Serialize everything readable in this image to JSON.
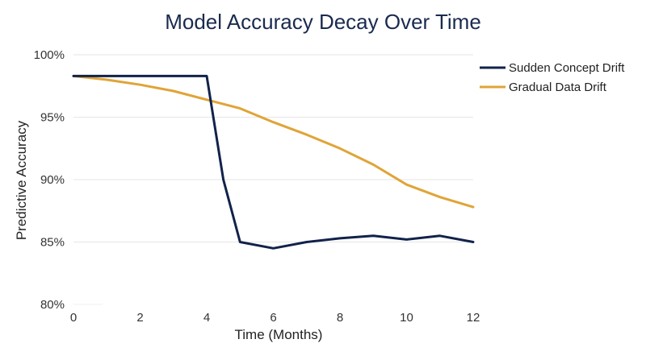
{
  "chart_data": {
    "type": "line",
    "title": "Model Accuracy Decay Over Time",
    "xlabel": "Time (Months)",
    "ylabel": "Predictive Accuracy",
    "xlim": [
      0,
      12
    ],
    "ylim": [
      80,
      100
    ],
    "x_ticks": [
      "0",
      "2",
      "4",
      "6",
      "8",
      "10",
      "12"
    ],
    "y_ticks": [
      "80%",
      "85%",
      "90%",
      "95%",
      "100%"
    ],
    "x_tick_values": [
      0,
      2,
      4,
      6,
      8,
      10,
      12
    ],
    "y_tick_values": [
      80,
      85,
      90,
      95,
      100
    ],
    "grid": "horizontal",
    "legend_position": "top-right",
    "series": [
      {
        "name": "Sudden Concept Drift",
        "color": "#12224a",
        "x": [
          0,
          1,
          2,
          3,
          4,
          4.5,
          5,
          6,
          7,
          8,
          9,
          10,
          11,
          12
        ],
        "values": [
          98.3,
          98.3,
          98.3,
          98.3,
          98.3,
          90.0,
          85.0,
          84.5,
          85.0,
          85.3,
          85.5,
          85.2,
          85.5,
          85.0
        ]
      },
      {
        "name": "Gradual Data Drift",
        "color": "#e0a437",
        "x": [
          0,
          1,
          2,
          3,
          4,
          5,
          6,
          7,
          8,
          9,
          10,
          11,
          12
        ],
        "values": [
          98.3,
          98.0,
          97.6,
          97.1,
          96.4,
          95.7,
          94.6,
          93.6,
          92.5,
          91.2,
          89.6,
          88.6,
          87.8
        ]
      }
    ]
  }
}
